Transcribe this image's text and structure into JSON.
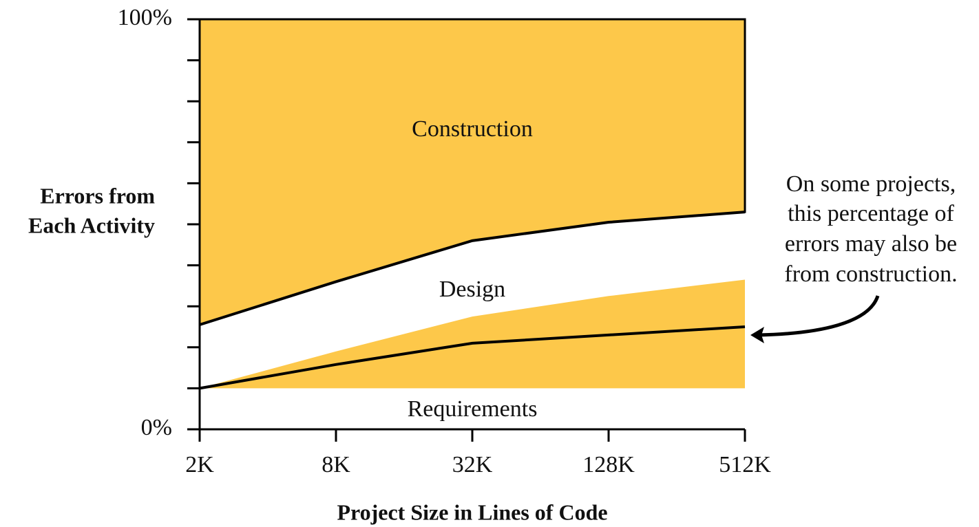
{
  "chart_data": {
    "type": "stacked_area",
    "categories": [
      "2K",
      "8K",
      "32K",
      "128K",
      "512K"
    ],
    "series": [
      {
        "name": "Requirements",
        "color": "#ffffff",
        "values": [
          10,
          15.8,
          21,
          23,
          25
        ]
      },
      {
        "name": "Design",
        "color": "#ffffff",
        "values": [
          15.5,
          20.2,
          25,
          27.5,
          28
        ]
      },
      {
        "name": "Construction",
        "color": "#fdc84a",
        "values": [
          74.5,
          64,
          54,
          49.5,
          47
        ]
      }
    ],
    "shaded_region": {
      "color": "#fdc84a",
      "lower": [
        10,
        10,
        10,
        10,
        10
      ],
      "upper": [
        10,
        19,
        27.5,
        32.5,
        36.5
      ]
    },
    "ylim": [
      0,
      100
    ],
    "yticks": [
      {
        "value": 0,
        "label": "0%"
      },
      {
        "value": 100,
        "label": "100%"
      }
    ],
    "minor_yticks": [
      10,
      20,
      30,
      40,
      50,
      60,
      70,
      80,
      90
    ],
    "ylabel": [
      "Errors from",
      "Each Activity"
    ],
    "xlabel": "Project Size in Lines of Code",
    "annotation": [
      "On some projects,",
      "this percentage of",
      "errors may also be",
      "from construction."
    ]
  }
}
